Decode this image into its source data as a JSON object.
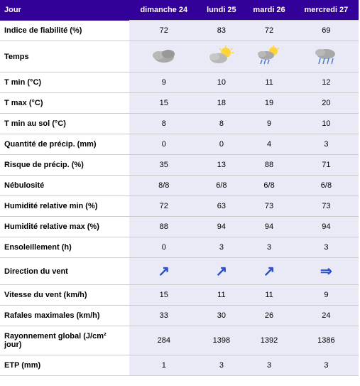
{
  "table": {
    "header_bg": "#330099",
    "header_fg": "#ffffff",
    "row_bg": "#ffffff",
    "cell_bg": "#eaeaf6",
    "border_color": "#cccccc",
    "jour_label": "Jour",
    "days": [
      "dimanche 24",
      "lundi 25",
      "mardi 26",
      "mercredi 27"
    ],
    "rows": [
      {
        "label": "Indice de fiabilité (%)",
        "values": [
          "72",
          "83",
          "72",
          "69"
        ]
      },
      {
        "label": "Temps",
        "type": "weather_icon",
        "icons": [
          "cloudy",
          "partly_sunny",
          "sun_rain",
          "rain"
        ]
      },
      {
        "label": "T min (°C)",
        "values": [
          "9",
          "10",
          "11",
          "12"
        ]
      },
      {
        "label": "T max (°C)",
        "values": [
          "15",
          "18",
          "19",
          "20"
        ]
      },
      {
        "label": "T min au sol (°C)",
        "values": [
          "8",
          "8",
          "9",
          "10"
        ]
      },
      {
        "label": "Quantité de précip. (mm)",
        "values": [
          "0",
          "0",
          "4",
          "3"
        ]
      },
      {
        "label": "Risque de précip. (%)",
        "values": [
          "35",
          "13",
          "88",
          "71"
        ]
      },
      {
        "label": "Nébulosité",
        "values": [
          "8/8",
          "6/8",
          "6/8",
          "6/8"
        ]
      },
      {
        "label": "Humidité relative min (%)",
        "values": [
          "72",
          "63",
          "73",
          "73"
        ]
      },
      {
        "label": "Humidité relative max (%)",
        "values": [
          "88",
          "94",
          "94",
          "94"
        ]
      },
      {
        "label": "Ensoleillement (h)",
        "values": [
          "0",
          "3",
          "3",
          "3"
        ]
      },
      {
        "label": "Direction du vent",
        "type": "wind_arrow",
        "arrows": [
          "ne",
          "ne",
          "ne",
          "e"
        ]
      },
      {
        "label": "Vitesse du vent (km/h)",
        "values": [
          "15",
          "11",
          "11",
          "9"
        ]
      },
      {
        "label": "Rafales maximales (km/h)",
        "values": [
          "33",
          "30",
          "26",
          "24"
        ]
      },
      {
        "label": "Rayonnement global (J/cm² jour)",
        "values": [
          "284",
          "1398",
          "1392",
          "1386"
        ]
      },
      {
        "label": "ETP (mm)",
        "values": [
          "1",
          "3",
          "3",
          "3"
        ]
      }
    ],
    "weather_svg": {
      "cloudy": "<svg width='40' height='28' viewBox='0 0 40 28'><ellipse cx='20' cy='16' rx='14' ry='8' fill='#a8a8a8'/><ellipse cx='12' cy='14' rx='8' ry='6' fill='#b8b8b8'/><ellipse cx='26' cy='12' rx='9' ry='6' fill='#989898'/></svg>",
      "partly_sunny": "<svg width='40' height='28' viewBox='0 0 40 28'><circle cx='26' cy='10' r='7' fill='#ffd43b'/><g stroke='#ffd43b' stroke-width='1.5'><line x1='26' y1='0' x2='26' y2='3'/><line x1='35' y1='4' x2='33' y2='6'/><line x1='37' y1='10' x2='34' y2='10'/><line x1='17' y1='4' x2='19' y2='6'/></g><ellipse cx='16' cy='18' rx='12' ry='7' fill='#b8b8b8'/><ellipse cx='10' cy='16' rx='7' ry='5' fill='#c8c8c8'/></svg>",
      "sun_rain": "<svg width='40' height='28' viewBox='0 0 40 28'><circle cx='26' cy='8' r='6' fill='#ffd43b'/><g stroke='#ffd43b' stroke-width='1.5'><line x1='26' y1='0' x2='26' y2='2'/><line x1='34' y1='3' x2='32' y2='5'/></g><ellipse cx='16' cy='14' rx='11' ry='6' fill='#a8a8a8'/><ellipse cx='10' cy='12' rx='6' ry='4' fill='#b8b8b8'/><line x1='10' y1='20' x2='8' y2='26' stroke='#4a7cc9' stroke-width='1.5'/><line x1='15' y1='20' x2='13' y2='26' stroke='#4a7cc9' stroke-width='1.5'/><line x1='20' y1='20' x2='18' y2='26' stroke='#4a7cc9' stroke-width='1.5'/></svg>",
      "rain": "<svg width='40' height='28' viewBox='0 0 40 28'><ellipse cx='20' cy='12' rx='13' ry='7' fill='#a8a8a8'/><ellipse cx='12' cy='10' rx='7' ry='5' fill='#b8b8b8'/><line x1='12' y1='18' x2='10' y2='26' stroke='#4a7cc9' stroke-width='1.5'/><line x1='18' y1='18' x2='16' y2='26' stroke='#4a7cc9' stroke-width='1.5'/><line x1='24' y1='18' x2='22' y2='26' stroke='#4a7cc9' stroke-width='1.5'/><line x1='30' y1='18' x2='28' y2='26' stroke='#4a7cc9' stroke-width='1.5'/></svg>"
    },
    "wind_arrow_glyph": {
      "ne": "↗",
      "e": "⇒",
      "n": "↑",
      "se": "↘",
      "s": "↓",
      "sw": "↙",
      "w": "⇐",
      "nw": "↖"
    }
  }
}
